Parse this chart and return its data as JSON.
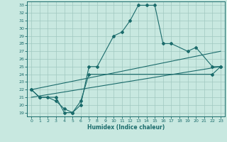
{
  "title": "",
  "xlabel": "Humidex (Indice chaleur)",
  "xlim": [
    -0.5,
    23.5
  ],
  "ylim": [
    18.5,
    33.5
  ],
  "xticks": [
    0,
    1,
    2,
    3,
    4,
    5,
    6,
    7,
    8,
    9,
    10,
    11,
    12,
    13,
    14,
    15,
    16,
    17,
    18,
    19,
    20,
    21,
    22,
    23
  ],
  "yticks": [
    19,
    20,
    21,
    22,
    23,
    24,
    25,
    26,
    27,
    28,
    29,
    30,
    31,
    32,
    33
  ],
  "bg_color": "#c8e8e0",
  "line_color": "#1a6b6b",
  "grid_color": "#a0c8c0",
  "curves": [
    {
      "x": [
        0,
        1,
        3,
        4,
        5,
        6,
        7,
        8,
        10,
        11,
        12,
        13,
        14,
        15,
        16,
        17,
        19,
        20,
        22,
        23
      ],
      "y": [
        22,
        21,
        21,
        19,
        19,
        20,
        25,
        25,
        29,
        29.5,
        31,
        33,
        33,
        33,
        28,
        28,
        27,
        27.5,
        25,
        25
      ],
      "markers": true
    },
    {
      "x": [
        0,
        1,
        2,
        3,
        4,
        5,
        6,
        7,
        22,
        23
      ],
      "y": [
        22,
        21,
        21,
        20.5,
        19.5,
        19,
        20.5,
        24,
        24,
        25
      ],
      "markers": true
    },
    {
      "x": [
        0,
        23
      ],
      "y": [
        21,
        25
      ],
      "markers": false
    },
    {
      "x": [
        0,
        23
      ],
      "y": [
        22,
        27
      ],
      "markers": false
    }
  ]
}
